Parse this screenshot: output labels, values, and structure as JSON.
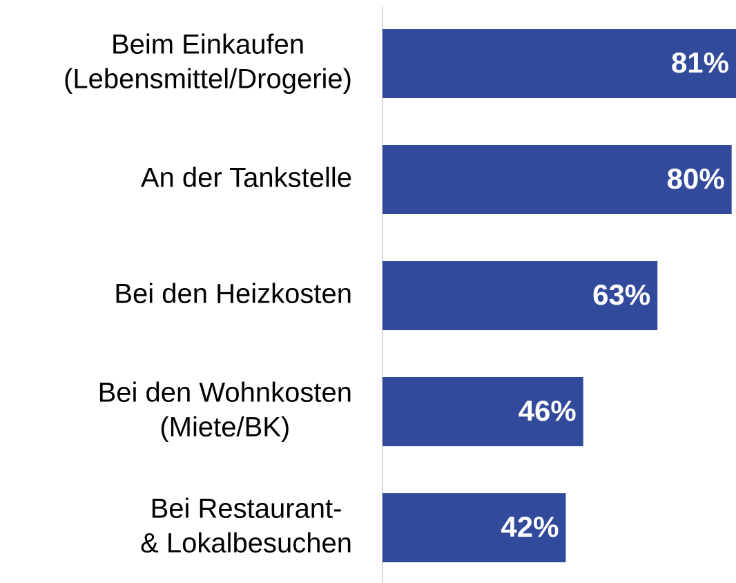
{
  "chart_data": {
    "type": "bar",
    "orientation": "horizontal",
    "categories": [
      [
        "Beim Einkaufen",
        "(Lebensmittel/Drogerie)"
      ],
      [
        "An der Tankstelle"
      ],
      [
        "Bei den Heizkosten"
      ],
      [
        "Bei den Wohnkosten",
        "(Miete/BK)"
      ],
      [
        "Bei Restaurant-",
        "& Lokalbesuchen"
      ]
    ],
    "values": [
      81,
      80,
      63,
      46,
      42
    ],
    "value_labels": [
      "81%",
      "80%",
      "63%",
      "46%",
      "42%"
    ],
    "color": "#324a9b",
    "xlim": [
      0,
      81
    ]
  }
}
